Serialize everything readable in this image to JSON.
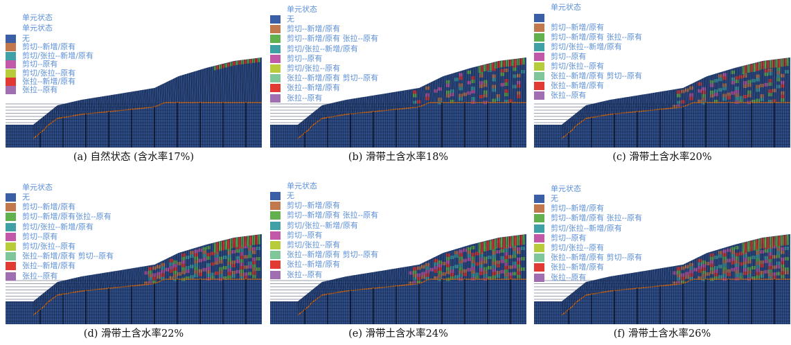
{
  "colors": {
    "bedrock": "#2f4d87",
    "grid": "#0f1d3a",
    "slip_band": "#d6701e"
  },
  "legend_items": [
    {
      "label": "无",
      "color": "#3a5fa6"
    },
    {
      "label": "剪切--新增/原有",
      "color": "#c0784c"
    },
    {
      "label": "剪切--新增/原有 张拉--原有",
      "color": "#62b04e"
    },
    {
      "label": "剪切/张拉--新增/原有",
      "color": "#3fa0a5"
    },
    {
      "label": "剪切--原有",
      "color": "#c159a8"
    },
    {
      "label": "剪切/张拉--原有",
      "color": "#b8cc3b"
    },
    {
      "label": "张拉--新增/原有 剪切--原有",
      "color": "#7fc69a"
    },
    {
      "label": "张拉--新增/原有",
      "color": "#e03a33"
    },
    {
      "label": "张拉--原有",
      "color": "#a06fb2"
    }
  ],
  "panels": [
    {
      "key": "a",
      "caption": "(a) 自然状态 (含水率17%)",
      "titles": [
        "单元状态",
        "单元状态"
      ],
      "legend": [
        {
          "label": "无",
          "color": "#3a5fa6"
        },
        {
          "label": "剪切--新增/原有",
          "color": "#c0784c"
        },
        {
          "label": "剪切/张拉--新增/原有",
          "color": "#3fa0a5"
        },
        {
          "label": "剪切--原有",
          "color": "#c159a8"
        },
        {
          "label": "剪切/张拉--原有",
          "color": "#b8cc3b"
        },
        {
          "label": "张拉--新增/原有",
          "color": "#e03a33"
        },
        {
          "label": "张拉--原有",
          "color": "#a06fb2"
        }
      ]
    },
    {
      "key": "b",
      "caption": "(b) 滑带土含水率18%",
      "titles": [
        "单元状态"
      ],
      "legend": [
        {
          "label": "无",
          "color": "#3a5fa6"
        },
        {
          "label": "剪切--新增/原有",
          "color": "#c0784c"
        },
        {
          "label": "剪切--新增/原有 张拉--原有",
          "color": "#62b04e"
        },
        {
          "label": "剪切/张拉--新增/原有",
          "color": "#3fa0a5"
        },
        {
          "label": "剪切--原有",
          "color": "#c159a8"
        },
        {
          "label": "剪切/张拉--原有",
          "color": "#b8cc3b"
        },
        {
          "label": "张拉--新增/原有 剪切--原有",
          "color": "#7fc69a"
        },
        {
          "label": "张拉--新增/原有",
          "color": "#e03a33"
        },
        {
          "label": "张拉--原有",
          "color": "#a06fb2"
        }
      ]
    },
    {
      "key": "c",
      "caption": "(c) 滑带土含水率20%",
      "titles": [
        "单元状态"
      ],
      "legend": [
        {
          "label": "",
          "color": "#3a5fa6"
        },
        {
          "label": "剪切--新增/原有",
          "color": "#c0784c"
        },
        {
          "label": "剪切--新增/原有 张拉--原有",
          "color": "#62b04e"
        },
        {
          "label": "剪切/张拉--新增/原有",
          "color": "#3fa0a5"
        },
        {
          "label": "剪切--原有",
          "color": "#c159a8"
        },
        {
          "label": "剪切/张拉--原有",
          "color": "#b8cc3b"
        },
        {
          "label": "张拉--新增/原有 剪切--原有",
          "color": "#7fc69a"
        },
        {
          "label": "张拉--新增/原有",
          "color": "#e03a33"
        },
        {
          "label": "张拉--原有",
          "color": "#a06fb2"
        }
      ]
    },
    {
      "key": "d",
      "caption": "(d) 滑带土含水率22%",
      "titles": [
        "单元状态"
      ],
      "legend": [
        {
          "label": "无",
          "color": "#3a5fa6"
        },
        {
          "label": "剪切--新增/原有",
          "color": "#c0784c"
        },
        {
          "label": "剪切--新增/原有张拉--原有",
          "color": "#62b04e"
        },
        {
          "label": "剪切/张拉--新增/原有",
          "color": "#3fa0a5"
        },
        {
          "label": "剪切--原有",
          "color": "#c159a8"
        },
        {
          "label": "剪切/张拉--原有",
          "color": "#b8cc3b"
        },
        {
          "label": "张拉--新增/原有 剪切--原有",
          "color": "#7fc69a"
        },
        {
          "label": "张拉--新增/原有",
          "color": "#e03a33"
        },
        {
          "label": "张拉--原有",
          "color": "#a06fb2"
        }
      ]
    },
    {
      "key": "e",
      "caption": "(e) 滑带土含水率24%",
      "titles": [
        "单元状态"
      ],
      "legend": [
        {
          "label": "无",
          "color": "#3a5fa6"
        },
        {
          "label": "剪切--新增/原有",
          "color": "#c0784c"
        },
        {
          "label": "剪切--新增/原有 张拉--原有",
          "color": "#62b04e"
        },
        {
          "label": "剪切/张拉--新增/原有",
          "color": "#3fa0a5"
        },
        {
          "label": "剪切--原有",
          "color": "#c159a8"
        },
        {
          "label": "剪切/张拉--原有",
          "color": "#b8cc3b"
        },
        {
          "label": "张拉--新增/原有 剪切--原有",
          "color": "#7fc69a"
        },
        {
          "label": "张拉--新增/原有",
          "color": "#e03a33"
        },
        {
          "label": "张拉--原有",
          "color": "#a06fb2"
        }
      ]
    },
    {
      "key": "f",
      "caption": "(f) 滑带土含水率26%",
      "titles": [
        "单元状态"
      ],
      "legend": [
        {
          "label": "无",
          "color": "#3a5fa6"
        },
        {
          "label": "剪切--新增/原有",
          "color": "#c0784c"
        },
        {
          "label": "剪切--新增/原有 张拉--原有",
          "color": "#62b04e"
        },
        {
          "label": "剪切/张拉--新增/原有",
          "color": "#3fa0a5"
        },
        {
          "label": "剪切--原有",
          "color": "#c159a8"
        },
        {
          "label": "剪切/张拉--原有",
          "color": "#b8cc3b"
        },
        {
          "label": "张拉--新增/原有 剪切--原有",
          "color": "#7fc69a"
        },
        {
          "label": "张拉--新增/原有",
          "color": "#e03a33"
        },
        {
          "label": "张拉--原有",
          "color": "#a06fb2"
        }
      ]
    }
  ]
}
